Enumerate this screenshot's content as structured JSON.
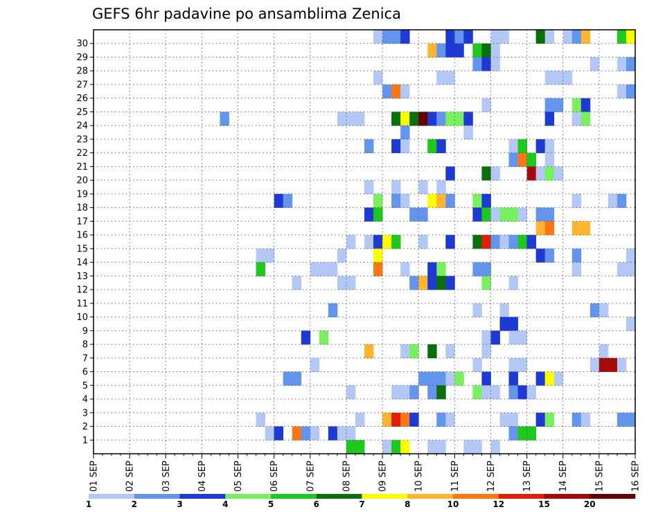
{
  "chart_data": {
    "type": "heatmap",
    "title": "GEFS 6hr padavine po ansamblima Zenica",
    "x_tick_labels": [
      "01 SEP",
      "02 SEP",
      "03 SEP",
      "04 SEP",
      "05 SEP",
      "06 SEP",
      "07 SEP",
      "08 SEP",
      "09 SEP",
      "10 SEP",
      "11 SEP",
      "12 SEP",
      "13 SEP",
      "14 SEP",
      "15 SEP",
      "16 SEP"
    ],
    "x_steps_per_day": 4,
    "x_steps_total": 60,
    "y_tick_labels": [
      "1",
      "2",
      "3",
      "4",
      "5",
      "6",
      "7",
      "8",
      "9",
      "10",
      "11",
      "12",
      "13",
      "14",
      "15",
      "16",
      "17",
      "18",
      "19",
      "20",
      "21",
      "22",
      "23",
      "24",
      "25",
      "26",
      "27",
      "28",
      "29",
      "30"
    ],
    "y_rows_total": 31,
    "grid": true,
    "colorbar": {
      "labels": [
        "1",
        "2",
        "3",
        "4",
        "5",
        "6",
        "7",
        "8",
        "10",
        "12",
        "15",
        "20"
      ],
      "colors": [
        "#b4c8f5",
        "#6495ed",
        "#1e3ad2",
        "#78f060",
        "#1ec81e",
        "#0a6e0a",
        "#ffff00",
        "#ffb432",
        "#fa7814",
        "#e11e0a",
        "#a50a0a",
        "#640000"
      ]
    },
    "cells": [
      [
        31,
        30,
        0
      ],
      [
        32,
        30,
        1
      ],
      [
        33,
        30,
        1
      ],
      [
        34,
        30,
        2
      ],
      [
        39,
        30,
        2
      ],
      [
        40,
        30,
        1
      ],
      [
        41,
        30,
        2
      ],
      [
        44,
        30,
        0
      ],
      [
        45,
        30,
        0
      ],
      [
        49,
        30,
        5
      ],
      [
        50,
        30,
        0
      ],
      [
        52,
        30,
        0
      ],
      [
        53,
        30,
        1
      ],
      [
        54,
        30,
        7
      ],
      [
        58,
        30,
        4
      ],
      [
        59,
        30,
        6
      ],
      [
        37,
        29,
        7
      ],
      [
        38,
        29,
        1
      ],
      [
        39,
        29,
        2
      ],
      [
        40,
        29,
        2
      ],
      [
        42,
        29,
        4
      ],
      [
        43,
        29,
        5
      ],
      [
        44,
        29,
        0
      ],
      [
        42,
        28,
        1
      ],
      [
        43,
        28,
        2
      ],
      [
        44,
        28,
        0
      ],
      [
        55,
        28,
        0
      ],
      [
        58,
        28,
        0
      ],
      [
        59,
        28,
        1
      ],
      [
        31,
        27,
        0
      ],
      [
        38,
        27,
        0
      ],
      [
        39,
        27,
        0
      ],
      [
        50,
        27,
        0
      ],
      [
        51,
        27,
        0
      ],
      [
        52,
        27,
        0
      ],
      [
        32,
        26,
        1
      ],
      [
        33,
        26,
        8
      ],
      [
        34,
        26,
        0
      ],
      [
        58,
        26,
        0
      ],
      [
        59,
        26,
        1
      ],
      [
        43,
        25,
        0
      ],
      [
        50,
        25,
        1
      ],
      [
        51,
        25,
        1
      ],
      [
        53,
        25,
        3
      ],
      [
        54,
        25,
        2
      ],
      [
        14,
        24,
        1
      ],
      [
        27,
        24,
        0
      ],
      [
        28,
        24,
        0
      ],
      [
        29,
        24,
        0
      ],
      [
        33,
        24,
        5
      ],
      [
        34,
        24,
        6
      ],
      [
        35,
        24,
        5
      ],
      [
        36,
        24,
        11
      ],
      [
        37,
        24,
        2
      ],
      [
        38,
        24,
        1
      ],
      [
        39,
        24,
        3
      ],
      [
        40,
        24,
        3
      ],
      [
        41,
        24,
        2
      ],
      [
        50,
        24,
        2
      ],
      [
        53,
        24,
        0
      ],
      [
        54,
        24,
        3
      ],
      [
        34,
        23,
        1
      ],
      [
        41,
        23,
        0
      ],
      [
        30,
        22,
        1
      ],
      [
        33,
        22,
        2
      ],
      [
        34,
        22,
        0
      ],
      [
        37,
        22,
        4
      ],
      [
        38,
        22,
        2
      ],
      [
        46,
        22,
        0
      ],
      [
        47,
        22,
        4
      ],
      [
        49,
        22,
        2
      ],
      [
        50,
        22,
        0
      ],
      [
        46,
        21,
        1
      ],
      [
        47,
        21,
        8
      ],
      [
        48,
        21,
        4
      ],
      [
        50,
        21,
        0
      ],
      [
        39,
        20,
        2
      ],
      [
        43,
        20,
        5
      ],
      [
        44,
        20,
        0
      ],
      [
        48,
        20,
        10
      ],
      [
        49,
        20,
        0
      ],
      [
        50,
        20,
        3
      ],
      [
        51,
        20,
        0
      ],
      [
        30,
        19,
        0
      ],
      [
        33,
        19,
        0
      ],
      [
        36,
        19,
        0
      ],
      [
        38,
        19,
        0
      ],
      [
        20,
        18,
        2
      ],
      [
        21,
        18,
        1
      ],
      [
        31,
        18,
        3
      ],
      [
        33,
        18,
        1
      ],
      [
        34,
        18,
        0
      ],
      [
        37,
        18,
        6
      ],
      [
        38,
        18,
        7
      ],
      [
        39,
        18,
        1
      ],
      [
        42,
        18,
        3
      ],
      [
        43,
        18,
        2
      ],
      [
        53,
        18,
        0
      ],
      [
        57,
        18,
        0
      ],
      [
        58,
        18,
        1
      ],
      [
        30,
        17,
        2
      ],
      [
        31,
        17,
        4
      ],
      [
        35,
        17,
        1
      ],
      [
        36,
        17,
        1
      ],
      [
        42,
        17,
        2
      ],
      [
        43,
        17,
        4
      ],
      [
        44,
        17,
        0
      ],
      [
        45,
        17,
        3
      ],
      [
        46,
        17,
        3
      ],
      [
        47,
        17,
        0
      ],
      [
        49,
        17,
        1
      ],
      [
        50,
        17,
        1
      ],
      [
        49,
        16,
        7
      ],
      [
        50,
        16,
        8
      ],
      [
        53,
        16,
        7
      ],
      [
        54,
        16,
        7
      ],
      [
        28,
        15,
        0
      ],
      [
        30,
        15,
        0
      ],
      [
        31,
        15,
        2
      ],
      [
        32,
        15,
        6
      ],
      [
        33,
        15,
        4
      ],
      [
        36,
        15,
        0
      ],
      [
        39,
        15,
        2
      ],
      [
        42,
        15,
        5
      ],
      [
        43,
        15,
        9
      ],
      [
        44,
        15,
        1
      ],
      [
        45,
        15,
        0
      ],
      [
        46,
        15,
        1
      ],
      [
        47,
        15,
        4
      ],
      [
        48,
        15,
        2
      ],
      [
        18,
        14,
        0
      ],
      [
        19,
        14,
        0
      ],
      [
        27,
        14,
        0
      ],
      [
        31,
        14,
        6
      ],
      [
        49,
        14,
        2
      ],
      [
        50,
        14,
        1
      ],
      [
        53,
        14,
        1
      ],
      [
        59,
        14,
        0
      ],
      [
        18,
        13,
        4
      ],
      [
        24,
        13,
        0
      ],
      [
        25,
        13,
        0
      ],
      [
        26,
        13,
        0
      ],
      [
        31,
        13,
        8
      ],
      [
        34,
        13,
        0
      ],
      [
        37,
        13,
        2
      ],
      [
        38,
        13,
        3
      ],
      [
        42,
        13,
        1
      ],
      [
        43,
        13,
        1
      ],
      [
        53,
        13,
        0
      ],
      [
        58,
        13,
        0
      ],
      [
        59,
        13,
        0
      ],
      [
        22,
        12,
        0
      ],
      [
        27,
        12,
        0
      ],
      [
        28,
        12,
        0
      ],
      [
        35,
        12,
        1
      ],
      [
        36,
        12,
        7
      ],
      [
        37,
        12,
        2
      ],
      [
        38,
        12,
        5
      ],
      [
        39,
        12,
        2
      ],
      [
        43,
        12,
        3
      ],
      [
        46,
        12,
        0
      ],
      [
        26,
        10,
        1
      ],
      [
        42,
        10,
        0
      ],
      [
        45,
        10,
        0
      ],
      [
        55,
        10,
        1
      ],
      [
        56,
        10,
        0
      ],
      [
        45,
        9,
        2
      ],
      [
        46,
        9,
        2
      ],
      [
        59,
        9,
        0
      ],
      [
        23,
        8,
        2
      ],
      [
        25,
        8,
        3
      ],
      [
        43,
        8,
        0
      ],
      [
        44,
        8,
        2
      ],
      [
        46,
        8,
        0
      ],
      [
        47,
        8,
        0
      ],
      [
        30,
        7,
        7
      ],
      [
        34,
        7,
        0
      ],
      [
        35,
        7,
        3
      ],
      [
        37,
        7,
        5
      ],
      [
        39,
        7,
        0
      ],
      [
        43,
        7,
        0
      ],
      [
        56,
        7,
        0
      ],
      [
        24,
        6,
        0
      ],
      [
        42,
        6,
        0
      ],
      [
        46,
        6,
        0
      ],
      [
        47,
        6,
        0
      ],
      [
        55,
        6,
        0
      ],
      [
        56,
        6,
        10
      ],
      [
        57,
        6,
        10
      ],
      [
        58,
        6,
        0
      ],
      [
        21,
        5,
        1
      ],
      [
        22,
        5,
        1
      ],
      [
        36,
        5,
        1
      ],
      [
        37,
        5,
        1
      ],
      [
        38,
        5,
        1
      ],
      [
        39,
        5,
        0
      ],
      [
        40,
        5,
        3
      ],
      [
        43,
        5,
        2
      ],
      [
        46,
        5,
        2
      ],
      [
        49,
        5,
        2
      ],
      [
        50,
        5,
        6
      ],
      [
        51,
        5,
        0
      ],
      [
        28,
        4,
        0
      ],
      [
        33,
        4,
        0
      ],
      [
        34,
        4,
        0
      ],
      [
        35,
        4,
        1
      ],
      [
        37,
        4,
        1
      ],
      [
        38,
        4,
        5
      ],
      [
        42,
        4,
        3
      ],
      [
        43,
        4,
        0
      ],
      [
        44,
        4,
        0
      ],
      [
        46,
        4,
        1
      ],
      [
        47,
        4,
        2
      ],
      [
        48,
        4,
        0
      ],
      [
        18,
        2,
        0
      ],
      [
        29,
        2,
        0
      ],
      [
        32,
        2,
        7
      ],
      [
        33,
        2,
        9
      ],
      [
        34,
        2,
        8
      ],
      [
        35,
        2,
        2
      ],
      [
        38,
        2,
        1
      ],
      [
        39,
        2,
        0
      ],
      [
        45,
        2,
        0
      ],
      [
        46,
        2,
        0
      ],
      [
        49,
        2,
        2
      ],
      [
        50,
        2,
        3
      ],
      [
        53,
        2,
        1
      ],
      [
        54,
        2,
        0
      ],
      [
        58,
        2,
        1
      ],
      [
        59,
        2,
        1
      ],
      [
        19,
        1,
        0
      ],
      [
        20,
        1,
        2
      ],
      [
        22,
        1,
        8
      ],
      [
        23,
        1,
        1
      ],
      [
        24,
        1,
        0
      ],
      [
        26,
        1,
        2
      ],
      [
        27,
        1,
        0
      ],
      [
        28,
        1,
        0
      ],
      [
        46,
        1,
        1
      ],
      [
        47,
        1,
        4
      ],
      [
        48,
        1,
        4
      ],
      [
        28,
        0,
        4
      ],
      [
        29,
        0,
        4
      ],
      [
        32,
        0,
        0
      ],
      [
        33,
        0,
        4
      ],
      [
        34,
        0,
        6
      ],
      [
        37,
        0,
        0
      ],
      [
        38,
        0,
        0
      ],
      [
        41,
        0,
        0
      ],
      [
        42,
        0,
        0
      ],
      [
        44,
        0,
        0
      ]
    ]
  }
}
